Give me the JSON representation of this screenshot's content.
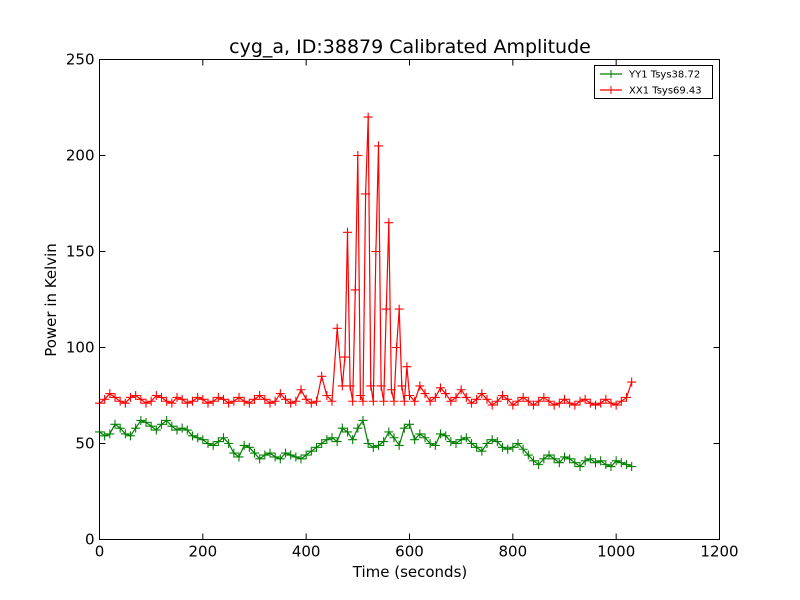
{
  "chart_data": {
    "type": "line",
    "title": "cyg_a, ID:38879 Calibrated Amplitude",
    "xlabel": "Time (seconds)",
    "ylabel": "Power in Kelvin",
    "xlim": [
      0,
      1200
    ],
    "ylim": [
      0,
      250
    ],
    "xticks": [
      0,
      200,
      400,
      600,
      800,
      1000,
      1200
    ],
    "yticks": [
      0,
      50,
      100,
      150,
      200,
      250
    ],
    "grid": false,
    "legend_position": "top-right",
    "marker": "plus",
    "series": [
      {
        "name": "YY1 Tsys38.72",
        "color": "#008000",
        "x": [
          0,
          10,
          20,
          30,
          40,
          50,
          60,
          70,
          80,
          90,
          100,
          110,
          120,
          130,
          140,
          150,
          160,
          170,
          180,
          190,
          200,
          210,
          220,
          230,
          240,
          250,
          260,
          270,
          280,
          290,
          300,
          310,
          320,
          330,
          340,
          350,
          360,
          370,
          380,
          390,
          400,
          410,
          420,
          430,
          440,
          450,
          460,
          470,
          480,
          490,
          500,
          510,
          520,
          530,
          540,
          550,
          560,
          570,
          580,
          590,
          600,
          610,
          620,
          630,
          640,
          650,
          660,
          670,
          680,
          690,
          700,
          710,
          720,
          730,
          740,
          750,
          760,
          770,
          780,
          790,
          800,
          810,
          820,
          830,
          840,
          850,
          860,
          870,
          880,
          890,
          900,
          910,
          920,
          930,
          940,
          950,
          960,
          970,
          980,
          990,
          1000,
          1010,
          1020,
          1030
        ],
        "y": [
          56,
          54,
          55,
          60,
          58,
          55,
          54,
          58,
          62,
          61,
          59,
          57,
          60,
          62,
          59,
          57,
          58,
          57,
          54,
          53,
          52,
          50,
          49,
          51,
          53,
          50,
          45,
          43,
          49,
          48,
          45,
          42,
          44,
          45,
          43,
          42,
          45,
          44,
          43,
          42,
          44,
          46,
          48,
          50,
          52,
          53,
          51,
          58,
          56,
          52,
          58,
          62,
          50,
          48,
          49,
          51,
          56,
          53,
          49,
          58,
          60,
          52,
          55,
          53,
          50,
          49,
          55,
          54,
          51,
          50,
          52,
          53,
          50,
          48,
          46,
          50,
          52,
          51,
          48,
          47,
          48,
          50,
          47,
          44,
          41,
          39,
          42,
          44,
          42,
          40,
          43,
          42,
          40,
          38,
          41,
          42,
          40,
          41,
          39,
          38,
          41,
          40,
          39,
          38
        ]
      },
      {
        "name": "XX1 Tsys69.43",
        "color": "#ff0000",
        "x": [
          0,
          10,
          20,
          30,
          40,
          50,
          60,
          70,
          80,
          90,
          100,
          110,
          120,
          130,
          140,
          150,
          160,
          170,
          180,
          190,
          200,
          210,
          220,
          230,
          240,
          250,
          260,
          270,
          280,
          290,
          300,
          310,
          320,
          330,
          340,
          350,
          360,
          370,
          380,
          390,
          400,
          410,
          420,
          430,
          440,
          450,
          460,
          470,
          475,
          480,
          485,
          490,
          495,
          500,
          505,
          510,
          515,
          520,
          525,
          530,
          535,
          540,
          545,
          550,
          555,
          560,
          565,
          570,
          575,
          580,
          585,
          590,
          595,
          600,
          610,
          620,
          630,
          640,
          650,
          660,
          670,
          680,
          690,
          700,
          710,
          720,
          730,
          740,
          750,
          760,
          770,
          780,
          790,
          800,
          810,
          820,
          830,
          840,
          850,
          860,
          870,
          880,
          890,
          900,
          910,
          920,
          930,
          940,
          950,
          960,
          970,
          980,
          990,
          1000,
          1010,
          1020,
          1030
        ],
        "y": [
          71,
          73,
          76,
          74,
          72,
          71,
          74,
          75,
          73,
          71,
          72,
          75,
          74,
          72,
          71,
          74,
          73,
          71,
          72,
          74,
          73,
          71,
          72,
          74,
          73,
          71,
          72,
          74,
          72,
          71,
          73,
          75,
          73,
          71,
          72,
          76,
          73,
          71,
          72,
          78,
          73,
          71,
          72,
          85,
          75,
          72,
          110,
          80,
          95,
          160,
          80,
          72,
          130,
          200,
          75,
          72,
          180,
          220,
          80,
          72,
          150,
          205,
          80,
          72,
          120,
          165,
          78,
          72,
          100,
          120,
          80,
          72,
          90,
          75,
          72,
          80,
          76,
          72,
          74,
          79,
          76,
          72,
          74,
          78,
          74,
          71,
          73,
          76,
          73,
          70,
          72,
          75,
          73,
          70,
          72,
          74,
          72,
          70,
          72,
          74,
          72,
          70,
          71,
          73,
          71,
          70,
          72,
          73,
          71,
          70,
          71,
          73,
          71,
          70,
          72,
          74,
          82
        ]
      }
    ]
  }
}
